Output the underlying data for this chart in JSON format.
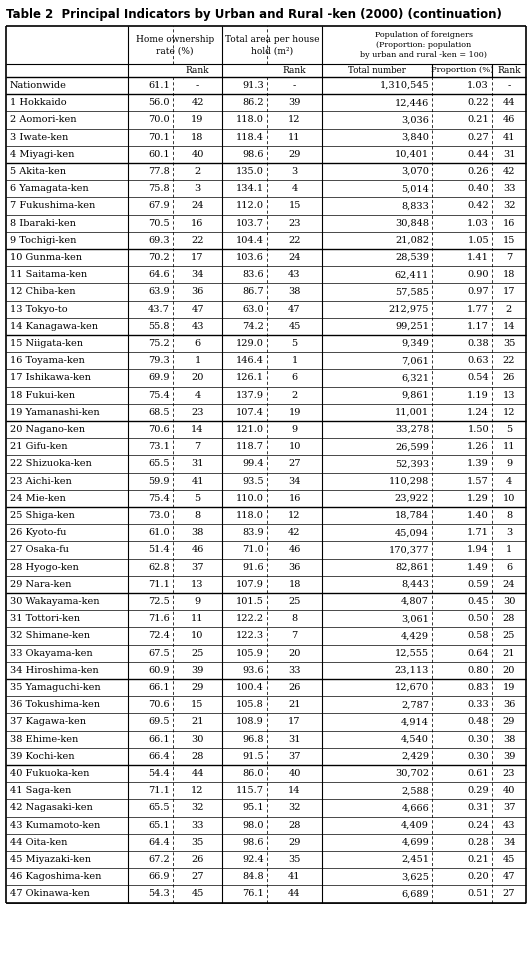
{
  "title": "Table 2  Principal Indicators by Urban and Rural -ken (2000) (continuation)",
  "rows": [
    [
      "Nationwide",
      "61.1",
      "-",
      "91.3",
      "-",
      "1,310,545",
      "1.03",
      "-"
    ],
    [
      "1 Hokkaido",
      "56.0",
      "42",
      "86.2",
      "39",
      "12,446",
      "0.22",
      "44"
    ],
    [
      "2 Aomori-ken",
      "70.0",
      "19",
      "118.0",
      "12",
      "3,036",
      "0.21",
      "46"
    ],
    [
      "3 Iwate-ken",
      "70.1",
      "18",
      "118.4",
      "11",
      "3,840",
      "0.27",
      "41"
    ],
    [
      "4 Miyagi-ken",
      "60.1",
      "40",
      "98.6",
      "29",
      "10,401",
      "0.44",
      "31"
    ],
    [
      "5 Akita-ken",
      "77.8",
      "2",
      "135.0",
      "3",
      "3,070",
      "0.26",
      "42"
    ],
    [
      "6 Yamagata-ken",
      "75.8",
      "3",
      "134.1",
      "4",
      "5,014",
      "0.40",
      "33"
    ],
    [
      "7 Fukushima-ken",
      "67.9",
      "24",
      "112.0",
      "15",
      "8,833",
      "0.42",
      "32"
    ],
    [
      "8 Ibaraki-ken",
      "70.5",
      "16",
      "103.7",
      "23",
      "30,848",
      "1.03",
      "16"
    ],
    [
      "9 Tochigi-ken",
      "69.3",
      "22",
      "104.4",
      "22",
      "21,082",
      "1.05",
      "15"
    ],
    [
      "10 Gunma-ken",
      "70.2",
      "17",
      "103.6",
      "24",
      "28,539",
      "1.41",
      "7"
    ],
    [
      "11 Saitama-ken",
      "64.6",
      "34",
      "83.6",
      "43",
      "62,411",
      "0.90",
      "18"
    ],
    [
      "12 Chiba-ken",
      "63.9",
      "36",
      "86.7",
      "38",
      "57,585",
      "0.97",
      "17"
    ],
    [
      "13 Tokyo-to",
      "43.7",
      "47",
      "63.0",
      "47",
      "212,975",
      "1.77",
      "2"
    ],
    [
      "14 Kanagawa-ken",
      "55.8",
      "43",
      "74.2",
      "45",
      "99,251",
      "1.17",
      "14"
    ],
    [
      "15 Niigata-ken",
      "75.2",
      "6",
      "129.0",
      "5",
      "9,349",
      "0.38",
      "35"
    ],
    [
      "16 Toyama-ken",
      "79.3",
      "1",
      "146.4",
      "1",
      "7,061",
      "0.63",
      "22"
    ],
    [
      "17 Ishikawa-ken",
      "69.9",
      "20",
      "126.1",
      "6",
      "6,321",
      "0.54",
      "26"
    ],
    [
      "18 Fukui-ken",
      "75.4",
      "4",
      "137.9",
      "2",
      "9,861",
      "1.19",
      "13"
    ],
    [
      "19 Yamanashi-ken",
      "68.5",
      "23",
      "107.4",
      "19",
      "11,001",
      "1.24",
      "12"
    ],
    [
      "20 Nagano-ken",
      "70.6",
      "14",
      "121.0",
      "9",
      "33,278",
      "1.50",
      "5"
    ],
    [
      "21 Gifu-ken",
      "73.1",
      "7",
      "118.7",
      "10",
      "26,599",
      "1.26",
      "11"
    ],
    [
      "22 Shizuoka-ken",
      "65.5",
      "31",
      "99.4",
      "27",
      "52,393",
      "1.39",
      "9"
    ],
    [
      "23 Aichi-ken",
      "59.9",
      "41",
      "93.5",
      "34",
      "110,298",
      "1.57",
      "4"
    ],
    [
      "24 Mie-ken",
      "75.4",
      "5",
      "110.0",
      "16",
      "23,922",
      "1.29",
      "10"
    ],
    [
      "25 Shiga-ken",
      "73.0",
      "8",
      "118.0",
      "12",
      "18,784",
      "1.40",
      "8"
    ],
    [
      "26 Kyoto-fu",
      "61.0",
      "38",
      "83.9",
      "42",
      "45,094",
      "1.71",
      "3"
    ],
    [
      "27 Osaka-fu",
      "51.4",
      "46",
      "71.0",
      "46",
      "170,377",
      "1.94",
      "1"
    ],
    [
      "28 Hyogo-ken",
      "62.8",
      "37",
      "91.6",
      "36",
      "82,861",
      "1.49",
      "6"
    ],
    [
      "29 Nara-ken",
      "71.1",
      "13",
      "107.9",
      "18",
      "8,443",
      "0.59",
      "24"
    ],
    [
      "30 Wakayama-ken",
      "72.5",
      "9",
      "101.5",
      "25",
      "4,807",
      "0.45",
      "30"
    ],
    [
      "31 Tottori-ken",
      "71.6",
      "11",
      "122.2",
      "8",
      "3,061",
      "0.50",
      "28"
    ],
    [
      "32 Shimane-ken",
      "72.4",
      "10",
      "122.3",
      "7",
      "4,429",
      "0.58",
      "25"
    ],
    [
      "33 Okayama-ken",
      "67.5",
      "25",
      "105.9",
      "20",
      "12,555",
      "0.64",
      "21"
    ],
    [
      "34 Hiroshima-ken",
      "60.9",
      "39",
      "93.6",
      "33",
      "23,113",
      "0.80",
      "20"
    ],
    [
      "35 Yamaguchi-ken",
      "66.1",
      "29",
      "100.4",
      "26",
      "12,670",
      "0.83",
      "19"
    ],
    [
      "36 Tokushima-ken",
      "70.6",
      "15",
      "105.8",
      "21",
      "2,787",
      "0.33",
      "36"
    ],
    [
      "37 Kagawa-ken",
      "69.5",
      "21",
      "108.9",
      "17",
      "4,914",
      "0.48",
      "29"
    ],
    [
      "38 Ehime-ken",
      "66.1",
      "30",
      "96.8",
      "31",
      "4,540",
      "0.30",
      "38"
    ],
    [
      "39 Kochi-ken",
      "66.4",
      "28",
      "91.5",
      "37",
      "2,429",
      "0.30",
      "39"
    ],
    [
      "40 Fukuoka-ken",
      "54.4",
      "44",
      "86.0",
      "40",
      "30,702",
      "0.61",
      "23"
    ],
    [
      "41 Saga-ken",
      "71.1",
      "12",
      "115.7",
      "14",
      "2,588",
      "0.29",
      "40"
    ],
    [
      "42 Nagasaki-ken",
      "65.5",
      "32",
      "95.1",
      "32",
      "4,666",
      "0.31",
      "37"
    ],
    [
      "43 Kumamoto-ken",
      "65.1",
      "33",
      "98.0",
      "28",
      "4,409",
      "0.24",
      "43"
    ],
    [
      "44 Oita-ken",
      "64.4",
      "35",
      "98.6",
      "29",
      "4,699",
      "0.28",
      "34"
    ],
    [
      "45 Miyazaki-ken",
      "67.2",
      "26",
      "92.4",
      "35",
      "2,451",
      "0.21",
      "45"
    ],
    [
      "46 Kagoshima-ken",
      "66.9",
      "27",
      "84.8",
      "41",
      "3,625",
      "0.20",
      "47"
    ],
    [
      "47 Okinawa-ken",
      "54.3",
      "45",
      "76.1",
      "44",
      "6,689",
      "0.51",
      "27"
    ]
  ],
  "group_thick_after": [
    0,
    5,
    10,
    15,
    20,
    25,
    30,
    35,
    40
  ],
  "bg_color": "#ffffff"
}
